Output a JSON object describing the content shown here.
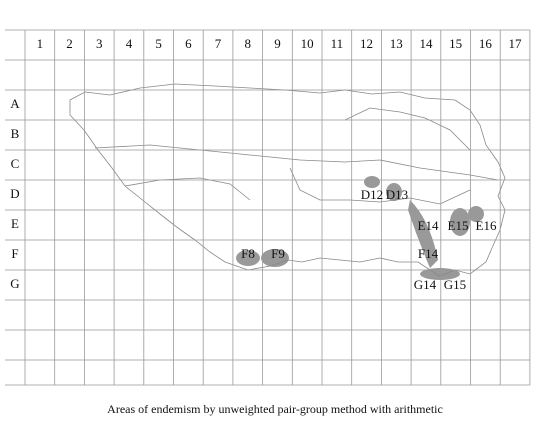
{
  "columns": [
    "1",
    "2",
    "3",
    "4",
    "5",
    "6",
    "7",
    "8",
    "9",
    "10",
    "11",
    "12",
    "13",
    "14",
    "15",
    "16",
    "17"
  ],
  "rows": [
    "A",
    "B",
    "C",
    "D",
    "E",
    "F",
    "G"
  ],
  "area_labels": [
    "D12",
    "D13",
    "E14",
    "E15",
    "E16",
    "F14",
    "F8",
    "F9",
    "G14",
    "G15"
  ],
  "caption": "Areas of endemism by unweighted pair-group method with arithmetic"
}
